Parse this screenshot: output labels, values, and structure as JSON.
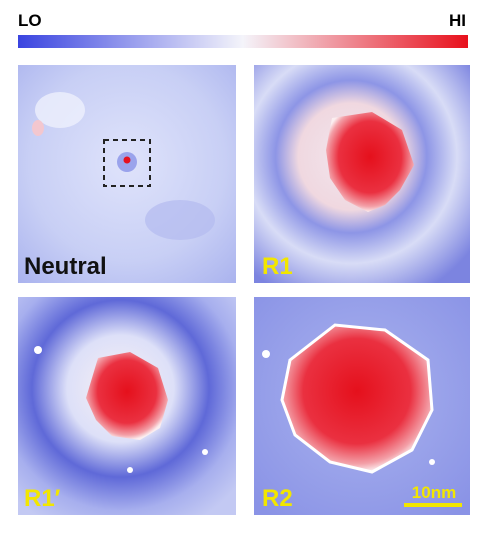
{
  "colorbar": {
    "low_label": "LO",
    "high_label": "HI"
  },
  "panels": [
    {
      "label": "Neutral"
    },
    {
      "label": "R1"
    },
    {
      "label": "R1′"
    },
    {
      "label": "R2"
    }
  ],
  "scale_bar": "10nm"
}
